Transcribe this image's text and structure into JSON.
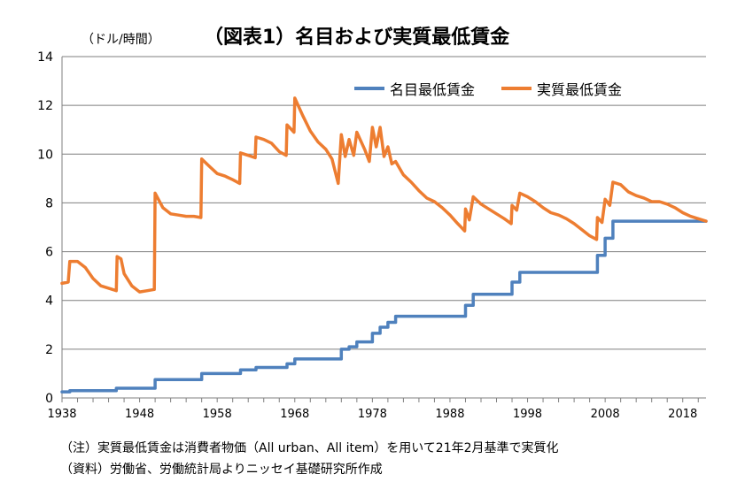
{
  "chart_data": {
    "type": "line",
    "title": "（図表1）名目および実質最低賃金",
    "unit_label": "（ドル/時間）",
    "ylim": [
      0,
      14
    ],
    "yticks": [
      "0",
      "2",
      "4",
      "6",
      "8",
      "10",
      "12",
      "14"
    ],
    "xlim": [
      1938,
      2021
    ],
    "xticks": [
      "1938",
      "1948",
      "1958",
      "1968",
      "1978",
      "1988",
      "1998",
      "2008",
      "2018"
    ],
    "grid": true,
    "legend_position": "top-right",
    "series": [
      {
        "name": "名目最低賃金",
        "color": "#4f81bd",
        "step": true,
        "points": [
          [
            1938,
            0.25
          ],
          [
            1939,
            0.3
          ],
          [
            1945,
            0.4
          ],
          [
            1950,
            0.75
          ],
          [
            1956,
            1.0
          ],
          [
            1961,
            1.15
          ],
          [
            1963,
            1.25
          ],
          [
            1967,
            1.4
          ],
          [
            1968,
            1.6
          ],
          [
            1974,
            2.0
          ],
          [
            1975,
            2.1
          ],
          [
            1976,
            2.3
          ],
          [
            1978,
            2.65
          ],
          [
            1979,
            2.9
          ],
          [
            1980,
            3.1
          ],
          [
            1981,
            3.35
          ],
          [
            1990,
            3.8
          ],
          [
            1991,
            4.25
          ],
          [
            1996,
            4.75
          ],
          [
            1997,
            5.15
          ],
          [
            2007,
            5.85
          ],
          [
            2008,
            6.55
          ],
          [
            2009,
            7.25
          ],
          [
            2021,
            7.25
          ]
        ]
      },
      {
        "name": "実質最低賃金",
        "color": "#ed7d31",
        "step": false,
        "points": [
          [
            1938,
            4.7
          ],
          [
            1938.8,
            4.75
          ],
          [
            1939,
            5.6
          ],
          [
            1940,
            5.6
          ],
          [
            1941,
            5.35
          ],
          [
            1942,
            4.9
          ],
          [
            1943,
            4.6
          ],
          [
            1944,
            4.5
          ],
          [
            1945,
            4.4
          ],
          [
            1945.1,
            5.8
          ],
          [
            1945.6,
            5.7
          ],
          [
            1946,
            5.1
          ],
          [
            1947,
            4.6
          ],
          [
            1948,
            4.35
          ],
          [
            1949,
            4.4
          ],
          [
            1949.9,
            4.45
          ],
          [
            1950,
            8.4
          ],
          [
            1951,
            7.8
          ],
          [
            1952,
            7.55
          ],
          [
            1953,
            7.5
          ],
          [
            1954,
            7.45
          ],
          [
            1955,
            7.45
          ],
          [
            1955.9,
            7.4
          ],
          [
            1956,
            9.8
          ],
          [
            1957,
            9.5
          ],
          [
            1958,
            9.2
          ],
          [
            1959,
            9.1
          ],
          [
            1960,
            8.95
          ],
          [
            1960.9,
            8.8
          ],
          [
            1961,
            10.05
          ],
          [
            1962,
            9.95
          ],
          [
            1962.9,
            9.85
          ],
          [
            1963,
            10.7
          ],
          [
            1964,
            10.6
          ],
          [
            1965,
            10.45
          ],
          [
            1966,
            10.1
          ],
          [
            1966.9,
            9.95
          ],
          [
            1967,
            11.2
          ],
          [
            1967.9,
            10.9
          ],
          [
            1968,
            12.3
          ],
          [
            1969,
            11.6
          ],
          [
            1970,
            10.95
          ],
          [
            1971,
            10.5
          ],
          [
            1972,
            10.2
          ],
          [
            1972.8,
            9.8
          ],
          [
            1973.6,
            8.8
          ],
          [
            1974,
            10.8
          ],
          [
            1974.5,
            9.9
          ],
          [
            1975,
            10.6
          ],
          [
            1975.6,
            9.95
          ],
          [
            1976,
            10.9
          ],
          [
            1977,
            10.2
          ],
          [
            1977.6,
            9.7
          ],
          [
            1978,
            11.1
          ],
          [
            1978.5,
            10.3
          ],
          [
            1979,
            11.1
          ],
          [
            1979.5,
            9.9
          ],
          [
            1980,
            10.3
          ],
          [
            1980.5,
            9.6
          ],
          [
            1981,
            9.7
          ],
          [
            1982,
            9.15
          ],
          [
            1983,
            8.85
          ],
          [
            1984,
            8.5
          ],
          [
            1985,
            8.2
          ],
          [
            1986,
            8.05
          ],
          [
            1987,
            7.8
          ],
          [
            1988,
            7.5
          ],
          [
            1989,
            7.15
          ],
          [
            1989.9,
            6.85
          ],
          [
            1990,
            7.75
          ],
          [
            1990.5,
            7.3
          ],
          [
            1991,
            8.25
          ],
          [
            1992,
            7.95
          ],
          [
            1993,
            7.75
          ],
          [
            1994,
            7.55
          ],
          [
            1995,
            7.35
          ],
          [
            1995.9,
            7.15
          ],
          [
            1996,
            7.9
          ],
          [
            1996.6,
            7.7
          ],
          [
            1997,
            8.4
          ],
          [
            1998,
            8.25
          ],
          [
            1999,
            8.05
          ],
          [
            2000,
            7.8
          ],
          [
            2001,
            7.6
          ],
          [
            2002,
            7.5
          ],
          [
            2003,
            7.35
          ],
          [
            2004,
            7.15
          ],
          [
            2005,
            6.9
          ],
          [
            2006,
            6.65
          ],
          [
            2006.9,
            6.5
          ],
          [
            2007,
            7.4
          ],
          [
            2007.6,
            7.2
          ],
          [
            2008,
            8.15
          ],
          [
            2008.6,
            7.9
          ],
          [
            2009,
            8.85
          ],
          [
            2010,
            8.75
          ],
          [
            2011,
            8.45
          ],
          [
            2012,
            8.3
          ],
          [
            2013,
            8.2
          ],
          [
            2014,
            8.05
          ],
          [
            2015,
            8.05
          ],
          [
            2016,
            7.95
          ],
          [
            2017,
            7.8
          ],
          [
            2018,
            7.6
          ],
          [
            2019,
            7.45
          ],
          [
            2020,
            7.35
          ],
          [
            2021,
            7.25
          ]
        ]
      }
    ]
  },
  "notes": [
    "（注）実質最低賃金は消費者物価（All urban、All item）を用いて21年2月基準で実質化",
    "（資料）労働省、労働統計局よりニッセイ基礎研究所作成"
  ]
}
